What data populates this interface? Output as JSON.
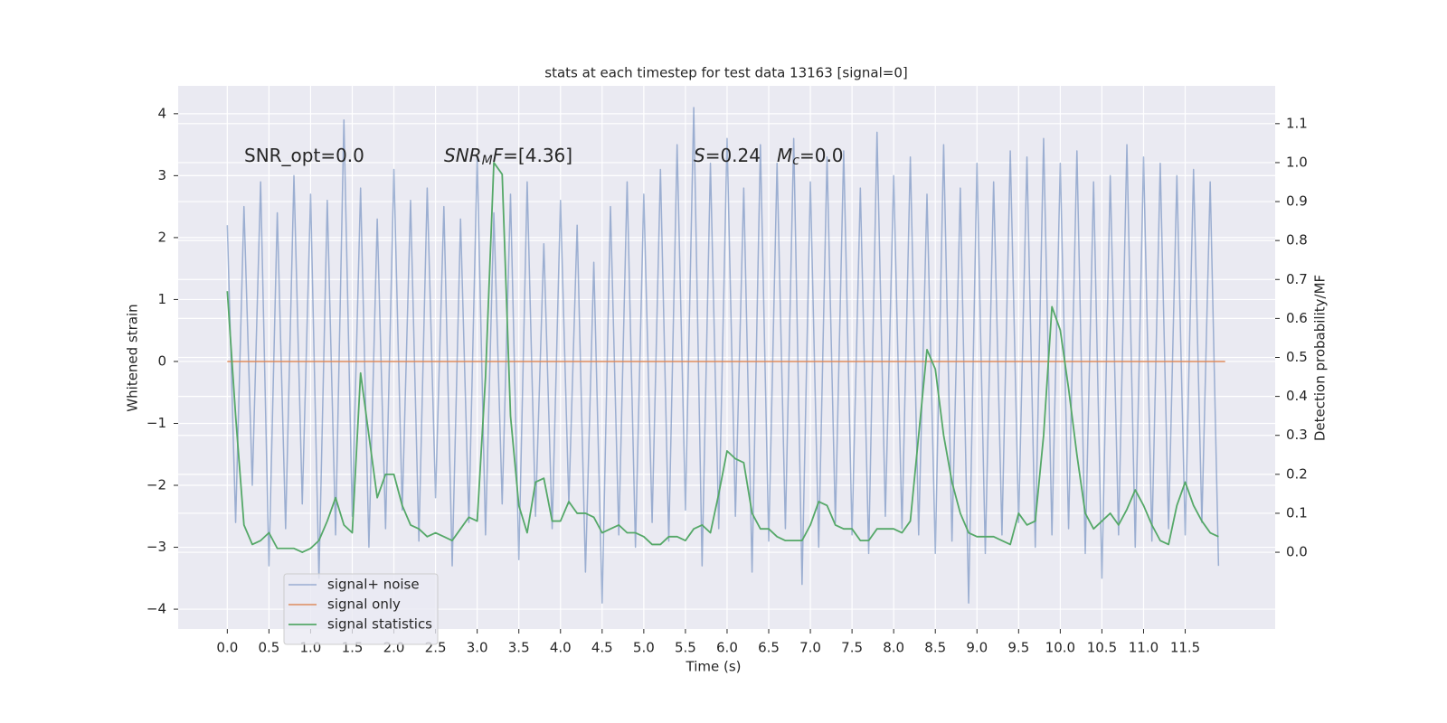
{
  "chart_data": {
    "type": "line",
    "title": "stats at each timestep for test data 13163 [signal=0]",
    "xlabel": "Time (s)",
    "ylabel": "Whitened strain",
    "y2label": "Detection probability/MF",
    "annotations": [
      [
        {
          "text": "SNR_opt=0.0"
        }
      ],
      [
        {
          "text": "SNR",
          "italic": true
        },
        {
          "text": "M",
          "italic": true,
          "sub": true
        },
        {
          "text": "F",
          "italic": true
        },
        {
          "text": "=[4.36]"
        }
      ],
      [
        {
          "text": "S",
          "italic": true
        },
        {
          "text": "=0.24"
        }
      ],
      [
        {
          "text": "M",
          "italic": true
        },
        {
          "text": "c",
          "italic": true,
          "sub": true
        },
        {
          "text": "=0.0"
        }
      ]
    ],
    "xlim": [
      -0.59,
      12.58
    ],
    "ylim": [
      -4.32,
      4.45
    ],
    "y2lim": [
      -0.197,
      1.197
    ],
    "xticks": [
      {
        "value": 0,
        "label": "0.0"
      },
      0.5,
      {
        "value": 1,
        "label": "1.0"
      },
      1.5,
      {
        "value": 2,
        "label": "2.0"
      },
      2.5,
      {
        "value": 3,
        "label": "3.0"
      },
      3.5,
      {
        "value": 4,
        "label": "4.0"
      },
      4.5,
      {
        "value": 5,
        "label": "5.0"
      },
      5.5,
      {
        "value": 6,
        "label": "6.0"
      },
      6.5,
      {
        "value": 7,
        "label": "7.0"
      },
      7.5,
      {
        "value": 8,
        "label": "8.0"
      },
      8.5,
      {
        "value": 9,
        "label": "9.0"
      },
      9.5,
      {
        "value": 10,
        "label": "10.0"
      },
      10.5,
      {
        "value": 11,
        "label": "11.0"
      },
      11.5
    ],
    "yticks": [
      {
        "value": -4,
        "label": "−4"
      },
      {
        "value": -3,
        "label": "−3"
      },
      {
        "value": -2,
        "label": "−2"
      },
      {
        "value": -1,
        "label": "−1"
      },
      0,
      1,
      2,
      3,
      4
    ],
    "y2ticks": [
      {
        "value": 0,
        "label": "0.0"
      },
      0.1,
      0.2,
      0.3,
      0.4,
      0.5,
      0.6,
      0.7,
      0.8,
      0.9,
      {
        "value": 1,
        "label": "1.0"
      },
      1.1
    ],
    "grid": true,
    "legend": "lower left",
    "x": [
      0.0,
      0.1,
      0.2,
      0.3,
      0.4,
      0.5,
      0.6,
      0.7,
      0.8,
      0.9,
      1.0,
      1.1,
      1.2,
      1.3,
      1.4,
      1.5,
      1.6,
      1.7,
      1.8,
      1.9,
      2.0,
      2.1,
      2.2,
      2.3,
      2.4,
      2.5,
      2.6,
      2.7,
      2.8,
      2.9,
      3.0,
      3.1,
      3.2,
      3.3,
      3.4,
      3.5,
      3.6,
      3.7,
      3.8,
      3.9,
      4.0,
      4.1,
      4.2,
      4.3,
      4.4,
      4.5,
      4.6,
      4.7,
      4.8,
      4.9,
      5.0,
      5.1,
      5.2,
      5.3,
      5.4,
      5.5,
      5.6,
      5.7,
      5.8,
      5.9,
      6.0,
      6.1,
      6.2,
      6.3,
      6.4,
      6.5,
      6.6,
      6.7,
      6.8,
      6.9,
      7.0,
      7.1,
      7.2,
      7.3,
      7.4,
      7.5,
      7.6,
      7.7,
      7.8,
      7.9,
      8.0,
      8.1,
      8.2,
      8.3,
      8.4,
      8.5,
      8.6,
      8.7,
      8.8,
      8.9,
      9.0,
      9.1,
      9.2,
      9.3,
      9.4,
      9.5,
      9.6,
      9.7,
      9.8,
      9.9,
      10.0,
      10.1,
      10.2,
      10.3,
      10.4,
      10.5,
      10.6,
      10.7,
      10.8,
      10.9,
      11.0,
      11.1,
      11.2,
      11.3,
      11.4,
      11.5,
      11.6,
      11.7,
      11.8,
      11.9
    ],
    "series": [
      {
        "name": "signal+ noise",
        "color": "#4c72b0",
        "axis": "y",
        "values": [
          2.2,
          -2.6,
          2.5,
          -2.0,
          2.9,
          -3.3,
          2.4,
          -2.7,
          3.0,
          -2.3,
          2.7,
          -3.5,
          2.6,
          -2.8,
          3.9,
          -2.5,
          2.8,
          -3.0,
          2.3,
          -2.7,
          3.1,
          -2.4,
          2.6,
          -2.9,
          2.8,
          -2.2,
          2.5,
          -3.3,
          2.3,
          -2.6,
          3.3,
          -2.8,
          2.4,
          -2.3,
          2.7,
          -3.2,
          2.9,
          -2.5,
          1.9,
          -2.7,
          2.6,
          -2.3,
          2.2,
          -3.4,
          1.6,
          -3.9,
          2.5,
          -2.8,
          2.9,
          -3.0,
          2.7,
          -2.6,
          3.1,
          -2.9,
          3.5,
          -2.4,
          4.1,
          -3.3,
          3.2,
          -2.7,
          3.6,
          -2.5,
          2.8,
          -3.4,
          3.5,
          -2.9,
          3.2,
          -2.7,
          3.6,
          -3.6,
          2.9,
          -3.0,
          3.3,
          -2.6,
          3.4,
          -2.8,
          2.8,
          -3.1,
          3.7,
          -2.5,
          3.0,
          -2.7,
          3.3,
          -2.8,
          2.7,
          -3.1,
          3.5,
          -2.9,
          2.8,
          -3.9,
          3.2,
          -3.1,
          2.9,
          -2.8,
          3.4,
          -2.6,
          3.3,
          -3.0,
          3.6,
          -2.8,
          3.2,
          -2.7,
          3.4,
          -3.1,
          2.9,
          -3.5,
          3.0,
          -2.8,
          3.5,
          -3.0,
          3.3,
          -2.9,
          3.2,
          -2.7,
          3.0,
          -2.8,
          3.1,
          -2.6,
          2.9,
          -3.3
        ]
      },
      {
        "name": "signal only",
        "color": "#dd8452",
        "axis": "y",
        "x": [
          0.0,
          11.98
        ],
        "values": [
          0,
          0
        ]
      },
      {
        "name": "signal statistics",
        "color": "#55a868",
        "axis": "y2",
        "values": [
          0.67,
          0.35,
          0.07,
          0.02,
          0.03,
          0.05,
          0.01,
          0.01,
          0.01,
          0.0,
          0.01,
          0.03,
          0.08,
          0.14,
          0.07,
          0.05,
          0.46,
          0.3,
          0.14,
          0.2,
          0.2,
          0.12,
          0.07,
          0.06,
          0.04,
          0.05,
          0.04,
          0.03,
          0.06,
          0.09,
          0.08,
          0.45,
          1.0,
          0.97,
          0.35,
          0.12,
          0.05,
          0.18,
          0.19,
          0.08,
          0.08,
          0.13,
          0.1,
          0.1,
          0.09,
          0.05,
          0.06,
          0.07,
          0.05,
          0.05,
          0.04,
          0.02,
          0.02,
          0.04,
          0.04,
          0.03,
          0.06,
          0.07,
          0.05,
          0.15,
          0.26,
          0.24,
          0.23,
          0.1,
          0.06,
          0.06,
          0.04,
          0.03,
          0.03,
          0.03,
          0.07,
          0.13,
          0.12,
          0.07,
          0.06,
          0.06,
          0.03,
          0.03,
          0.06,
          0.06,
          0.06,
          0.05,
          0.08,
          0.3,
          0.52,
          0.47,
          0.3,
          0.18,
          0.1,
          0.05,
          0.04,
          0.04,
          0.04,
          0.03,
          0.02,
          0.1,
          0.07,
          0.08,
          0.3,
          0.63,
          0.57,
          0.42,
          0.25,
          0.1,
          0.06,
          0.08,
          0.1,
          0.07,
          0.11,
          0.16,
          0.12,
          0.07,
          0.03,
          0.02,
          0.12,
          0.18,
          0.12,
          0.08,
          0.05,
          0.04
        ]
      }
    ]
  }
}
